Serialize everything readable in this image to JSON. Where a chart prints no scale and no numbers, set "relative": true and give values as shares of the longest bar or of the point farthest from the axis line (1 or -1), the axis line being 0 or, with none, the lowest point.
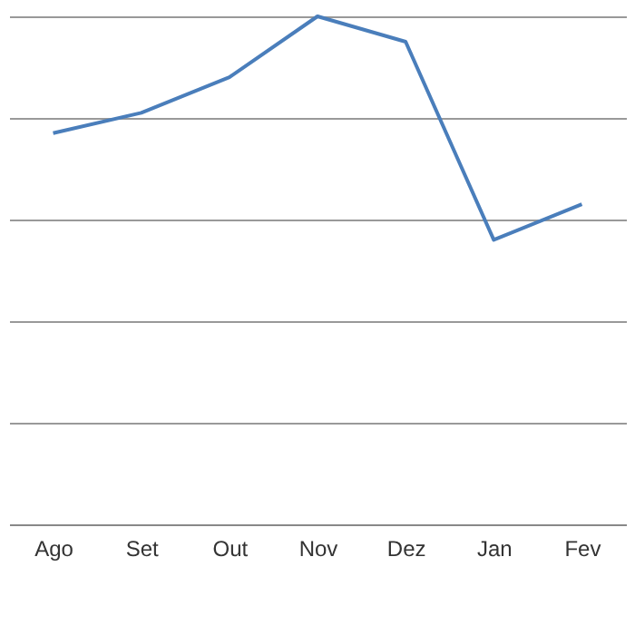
{
  "chart_data": {
    "type": "line",
    "relative": true,
    "grid": "y",
    "categories": [
      "Ago",
      "Set",
      "Out",
      "Nov",
      "Dez",
      "Jan",
      "Fev"
    ],
    "series": [
      {
        "color": "#4a7ebb",
        "values": [
          0.77,
          0.81,
          0.88,
          1,
          0.95,
          0.56,
          0.63
        ]
      }
    ]
  }
}
